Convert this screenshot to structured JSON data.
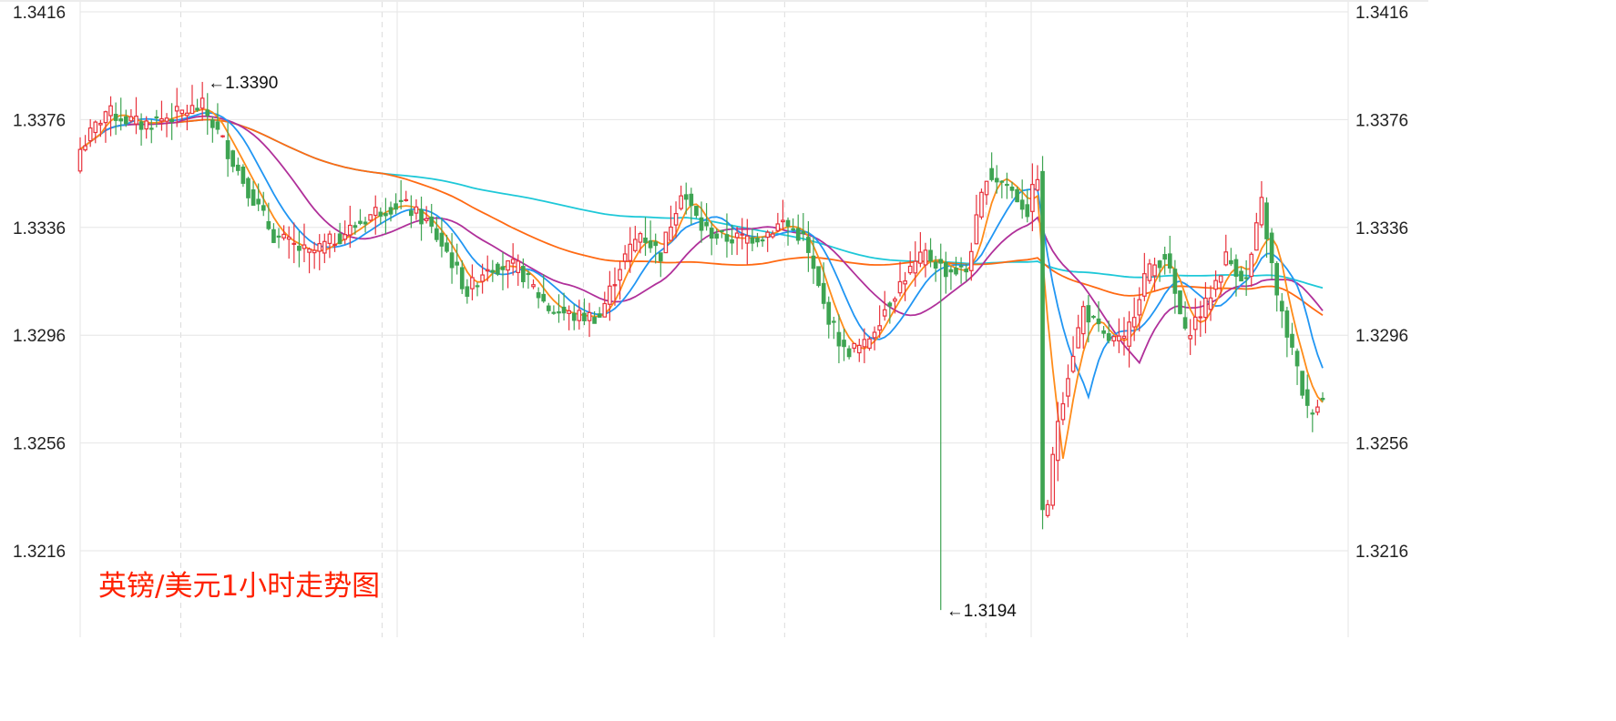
{
  "colors": {
    "up": "#e8323c",
    "down": "#3ea452",
    "ma5": "#ff8c1a",
    "ma10": "#2196f3",
    "ma20": "#b0309a",
    "ma60": "#ff6a13",
    "ma120": "#1ec8d8",
    "grid": "#e6e6e6",
    "axis_text": "#222222",
    "title": "#ff2200"
  },
  "chart_data": {
    "type": "candlestick",
    "title": "英镑/美元1小时走势图",
    "y_ticks": [
      "1.3416",
      "1.3376",
      "1.3336",
      "1.3296",
      "1.3256",
      "1.3216"
    ],
    "ylim": [
      1.3185,
      1.3418
    ],
    "grid": true,
    "axis_labels_both_sides": true,
    "annotations": [
      {
        "text": "←1.3390",
        "index": 24,
        "price": 1.339,
        "kind": "high"
      },
      {
        "text": "←1.3194",
        "index": 169,
        "price": 1.3194,
        "kind": "low"
      }
    ],
    "moving_averages": [
      "ma5",
      "ma10",
      "ma20",
      "ma60",
      "ma120"
    ],
    "key_points": [
      [
        0,
        1.3365
      ],
      [
        5,
        1.3379
      ],
      [
        12,
        1.3374
      ],
      [
        24,
        1.3381
      ],
      [
        28,
        1.3368
      ],
      [
        33,
        1.335
      ],
      [
        38,
        1.3333
      ],
      [
        45,
        1.3326
      ],
      [
        52,
        1.3334
      ],
      [
        58,
        1.3342
      ],
      [
        63,
        1.3345
      ],
      [
        68,
        1.3338
      ],
      [
        72,
        1.3327
      ],
      [
        76,
        1.3312
      ],
      [
        80,
        1.3322
      ],
      [
        86,
        1.3321
      ],
      [
        92,
        1.3306
      ],
      [
        97,
        1.3303
      ],
      [
        102,
        1.3303
      ],
      [
        106,
        1.3322
      ],
      [
        110,
        1.3334
      ],
      [
        114,
        1.3326
      ],
      [
        118,
        1.335
      ],
      [
        122,
        1.3336
      ],
      [
        126,
        1.3332
      ],
      [
        130,
        1.3332
      ],
      [
        134,
        1.3333
      ],
      [
        138,
        1.3338
      ],
      [
        142,
        1.3332
      ],
      [
        146,
        1.3307
      ],
      [
        150,
        1.329
      ],
      [
        154,
        1.3292
      ],
      [
        158,
        1.3306
      ],
      [
        162,
        1.3318
      ],
      [
        166,
        1.3326
      ],
      [
        170,
        1.332
      ],
      [
        174,
        1.332
      ],
      [
        178,
        1.3356
      ],
      [
        182,
        1.3352
      ],
      [
        186,
        1.3342
      ],
      [
        188,
        1.3356
      ],
      [
        189,
        1.3229
      ],
      [
        190,
        1.3234
      ],
      [
        192,
        1.3265
      ],
      [
        194,
        1.3282
      ],
      [
        197,
        1.3306
      ],
      [
        201,
        1.3295
      ],
      [
        205,
        1.3293
      ],
      [
        209,
        1.3318
      ],
      [
        213,
        1.3326
      ],
      [
        217,
        1.3296
      ],
      [
        221,
        1.3307
      ],
      [
        225,
        1.3325
      ],
      [
        229,
        1.3316
      ],
      [
        232,
        1.3345
      ],
      [
        235,
        1.331
      ],
      [
        238,
        1.329
      ],
      [
        241,
        1.3268
      ],
      [
        244,
        1.3272
      ]
    ]
  }
}
